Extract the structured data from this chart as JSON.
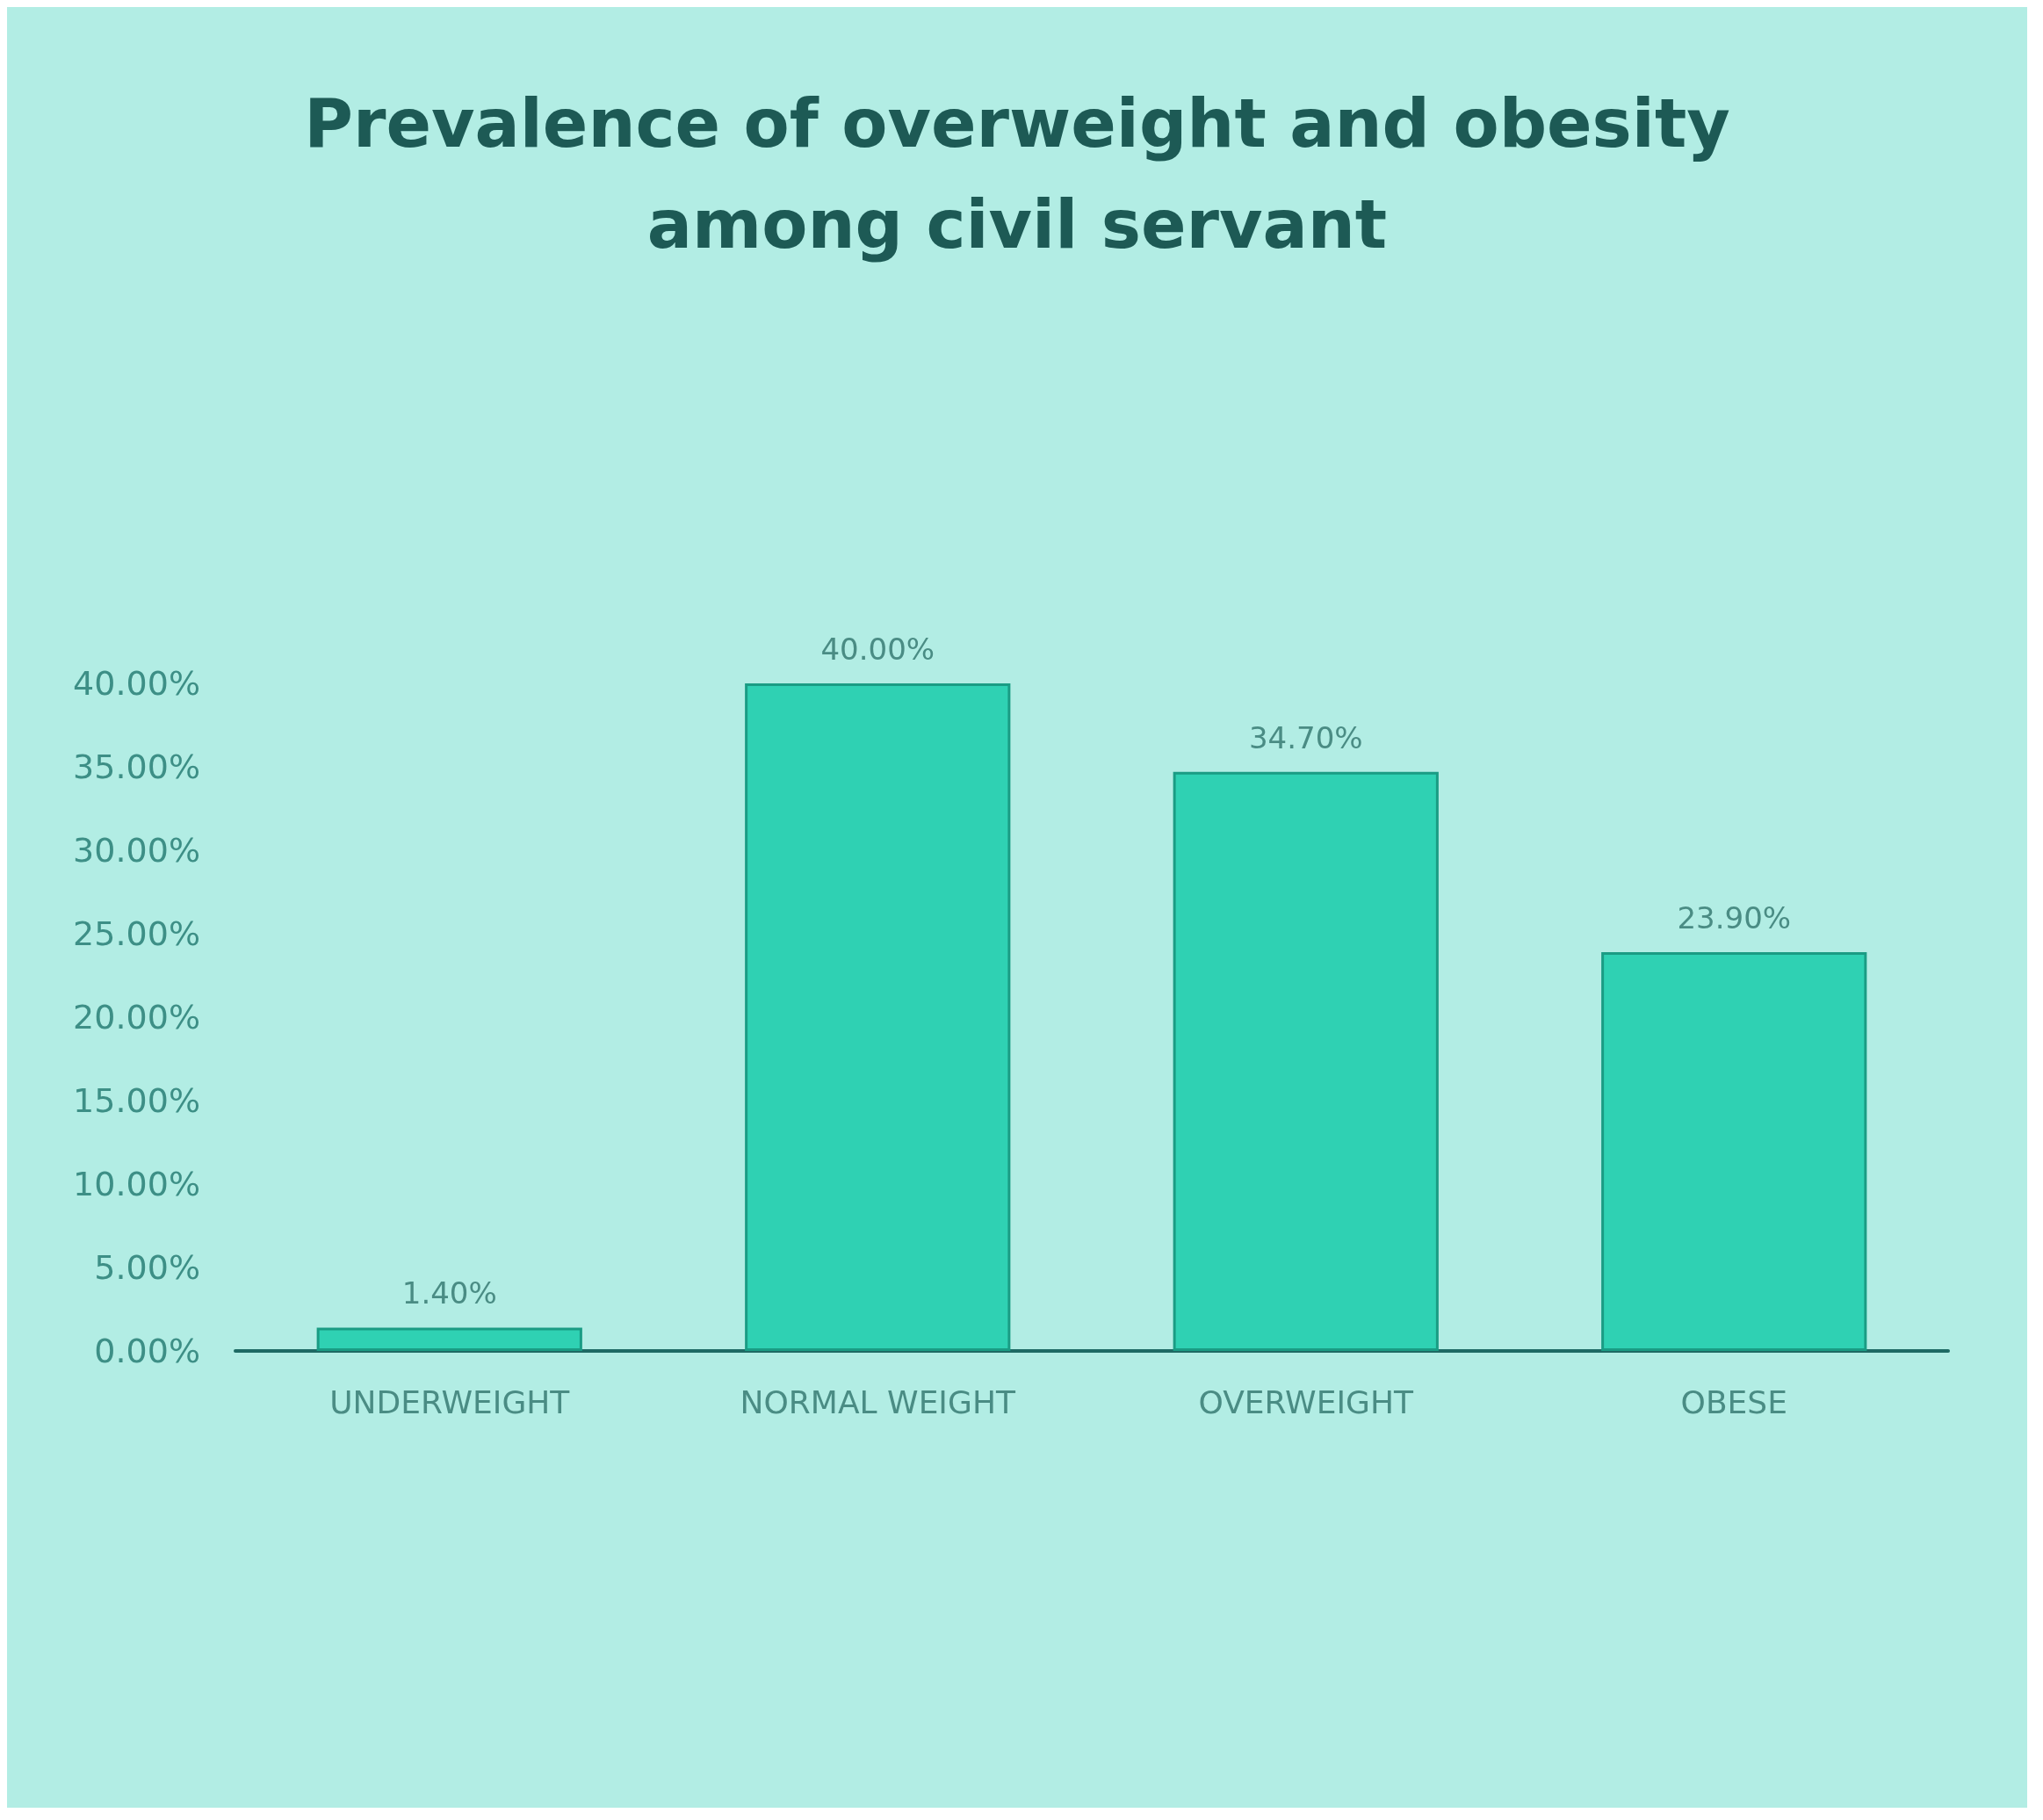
{
  "chart_data": {
    "type": "bar",
    "title": "Prevalence of overweight and obesity\namong civil servant",
    "categories": [
      "UNDERWEIGHT",
      "NORMAL WEIGHT",
      "OVERWEIGHT",
      "OBESE"
    ],
    "values": [
      1.4,
      40,
      34.7,
      23.9
    ],
    "value_labels": [
      "1.40%",
      "40.00%",
      "34.70%",
      "23.90%"
    ],
    "color": "#2fd1b3",
    "ylim": [
      0,
      40
    ],
    "yticks": [
      {
        "value": 0,
        "label": "0.00%"
      },
      {
        "value": 5,
        "label": "5.00%"
      },
      {
        "value": 10,
        "label": "10.00%"
      },
      {
        "value": 15,
        "label": "15.00%"
      },
      {
        "value": 20,
        "label": "20.00%"
      },
      {
        "value": 25,
        "label": "25.00%"
      },
      {
        "value": 30,
        "label": "30.00%"
      },
      {
        "value": 35,
        "label": "35.00%"
      },
      {
        "value": 40,
        "label": "40.00%"
      }
    ],
    "grid": false
  }
}
